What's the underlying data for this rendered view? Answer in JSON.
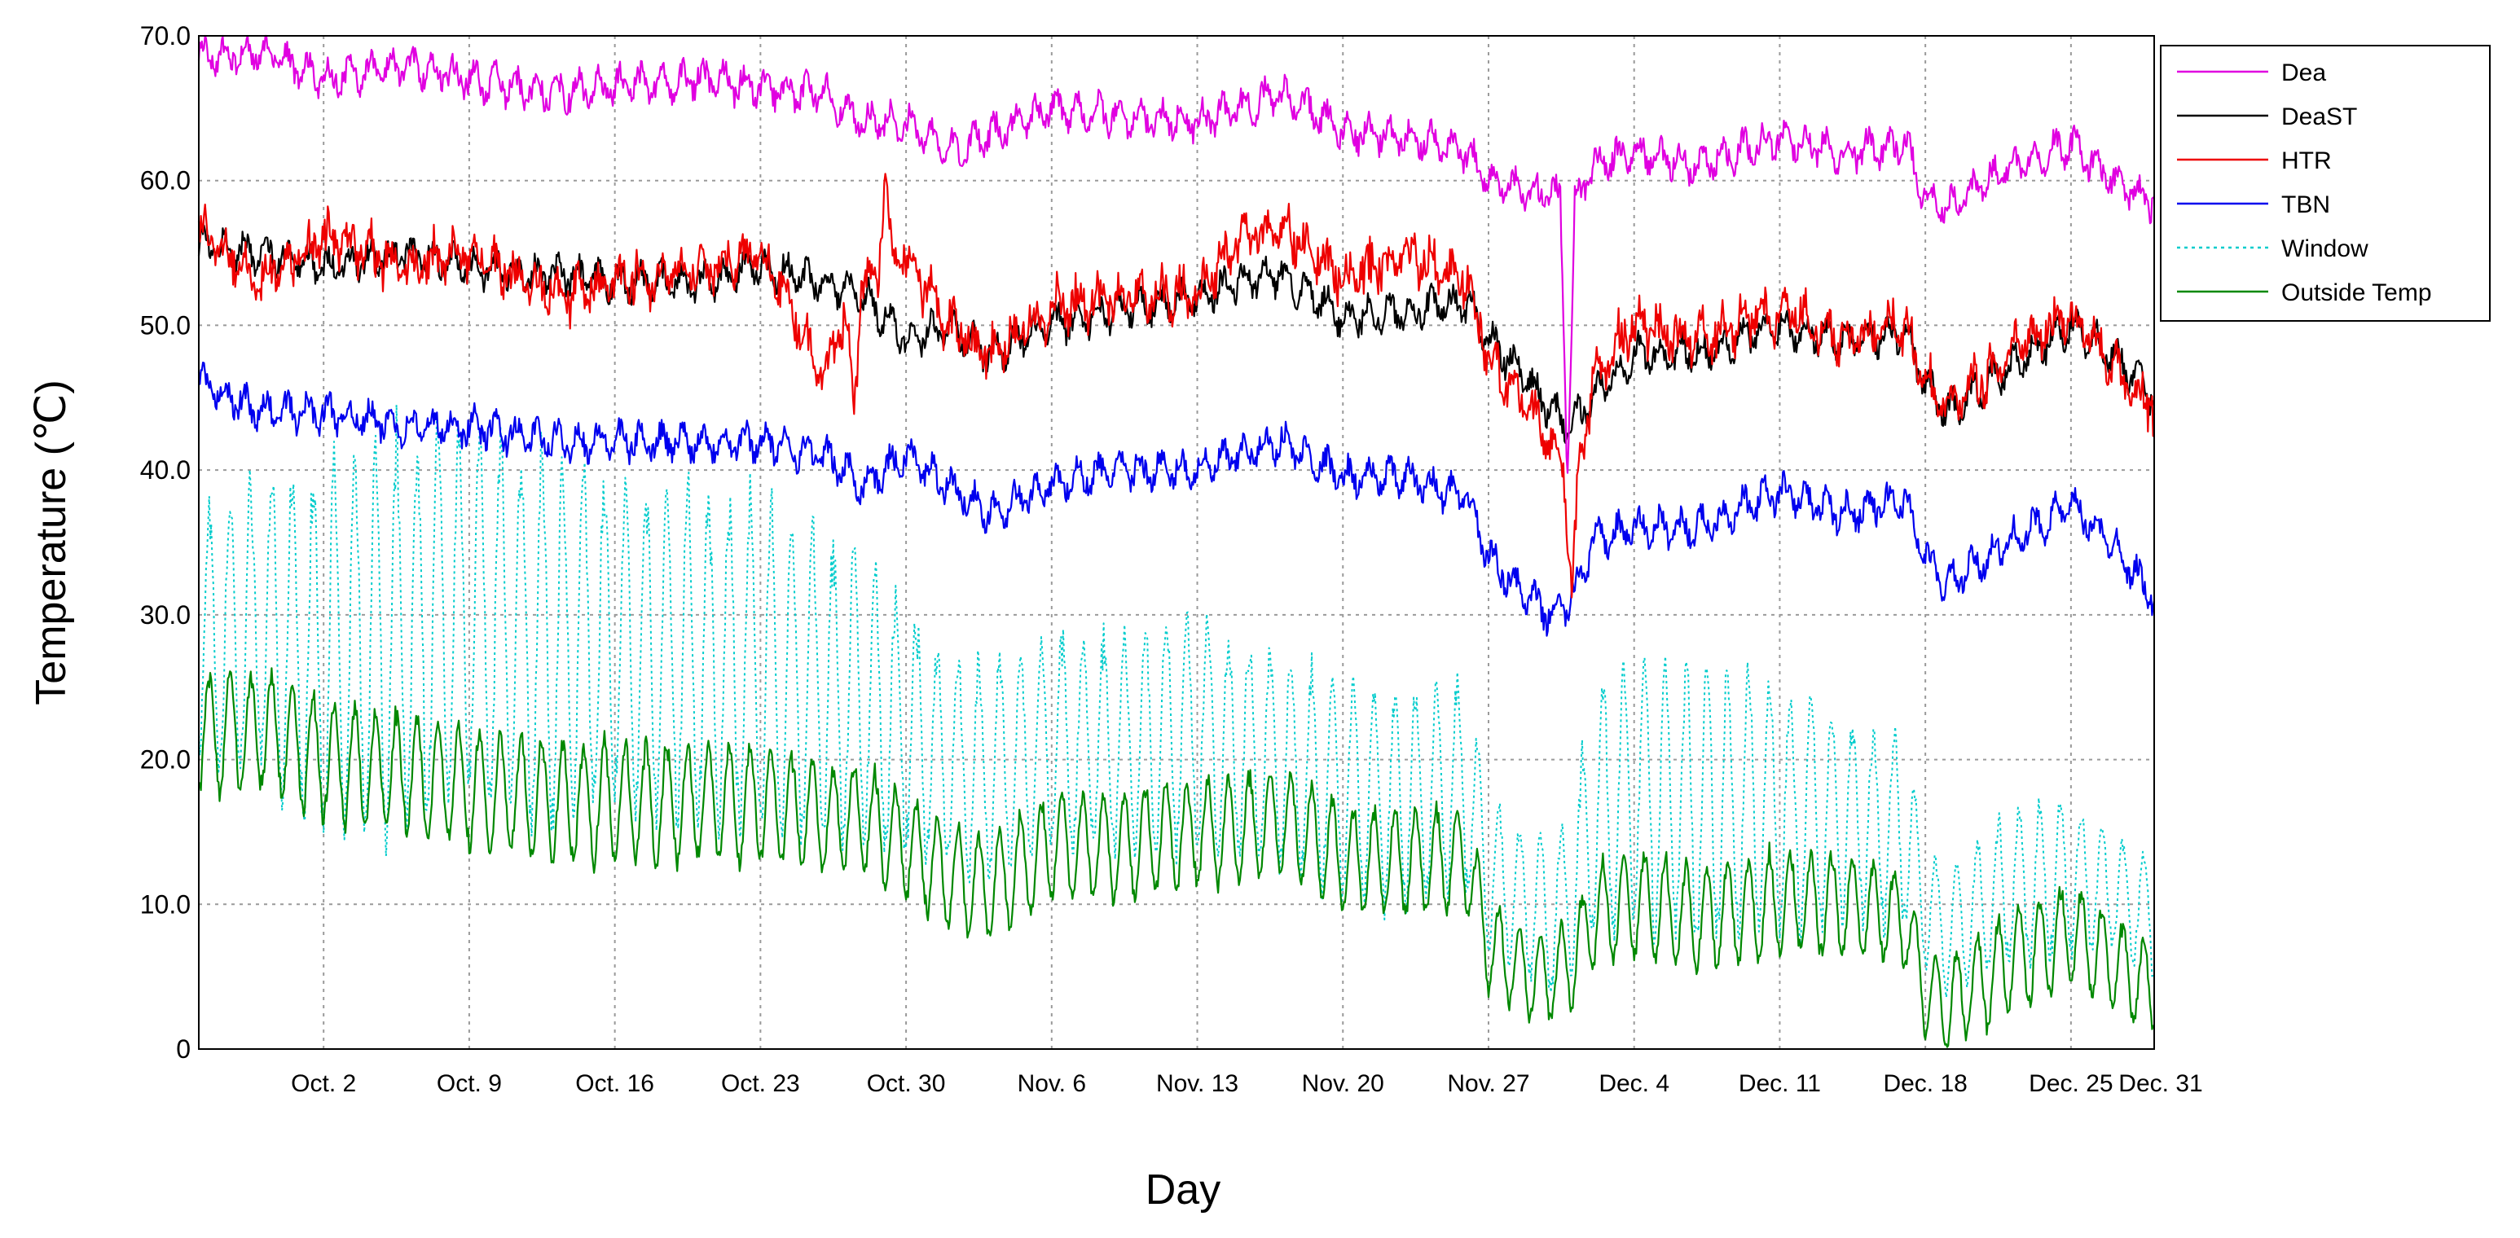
{
  "chart_data": {
    "type": "line",
    "title": "",
    "xlabel": "Day",
    "ylabel": "Temperature (℃)",
    "ylim": [
      0,
      70
    ],
    "xlim": [
      -3,
      91
    ],
    "grid": true,
    "legend_position": "top-right",
    "yticks": [
      {
        "value": 0,
        "label": "0"
      },
      {
        "value": 10,
        "label": "10.0"
      },
      {
        "value": 20,
        "label": "20.0"
      },
      {
        "value": 30,
        "label": "30.0"
      },
      {
        "value": 40,
        "label": "40.0"
      },
      {
        "value": 50,
        "label": "50.0"
      },
      {
        "value": 60,
        "label": "60.0"
      },
      {
        "value": 70,
        "label": "70.0"
      }
    ],
    "xticks": [
      {
        "value": 3,
        "label": "Oct. 2"
      },
      {
        "value": 10,
        "label": "Oct. 9"
      },
      {
        "value": 17,
        "label": "Oct. 16"
      },
      {
        "value": 24,
        "label": "Oct. 23"
      },
      {
        "value": 31,
        "label": "Oct. 30"
      },
      {
        "value": 38,
        "label": "Nov. 6"
      },
      {
        "value": 45,
        "label": "Nov. 13"
      },
      {
        "value": 52,
        "label": "Nov. 20"
      },
      {
        "value": 59,
        "label": "Nov. 27"
      },
      {
        "value": 66,
        "label": "Dec. 4"
      },
      {
        "value": 73,
        "label": "Dec. 11"
      },
      {
        "value": 80,
        "label": "Dec. 18"
      },
      {
        "value": 87,
        "label": "Dec. 25"
      },
      {
        "value": 93,
        "label": "Dec. 31"
      }
    ],
    "x": [
      -3,
      0,
      3,
      7,
      10,
      14,
      17,
      21,
      24,
      27,
      29,
      31,
      33,
      35,
      38,
      41,
      45,
      47,
      49,
      52,
      55,
      58,
      59,
      61,
      62,
      63,
      64,
      66,
      69,
      73,
      76,
      79,
      80,
      81,
      84,
      87,
      89,
      91
    ],
    "series": [
      {
        "name": "Dea",
        "color": "#e000e0",
        "dashed": false,
        "values": [
          68.5,
          69,
          67,
          68,
          67,
          66,
          66.5,
          67,
          66.5,
          66,
          64,
          64,
          62,
          63,
          65,
          64.5,
          64,
          65,
          66,
          63.5,
          63,
          62,
          60,
          59,
          59,
          58,
          61,
          62,
          61,
          63,
          62,
          62.5,
          59,
          58,
          61,
          62.5,
          60,
          58.5
        ],
        "spikes": [
          {
            "x": 62.8,
            "value": 40
          }
        ]
      },
      {
        "name": "DeaST",
        "color": "#000000",
        "dashed": false,
        "values": [
          55.5,
          55,
          54,
          55,
          54,
          53.5,
          53,
          53,
          54,
          53,
          52,
          49,
          50,
          48,
          50,
          51,
          52,
          53,
          53.5,
          50.5,
          51,
          51.5,
          49,
          46,
          44,
          43,
          45,
          48,
          48,
          50,
          49,
          49.5,
          46,
          44,
          47,
          50,
          48,
          45
        ]
      },
      {
        "name": "HTR",
        "color": "#ee0000",
        "dashed": false,
        "values": [
          57,
          53,
          56,
          54,
          55,
          52,
          53,
          54,
          55,
          47,
          53,
          55,
          50,
          48,
          51,
          52,
          52,
          56,
          57,
          53,
          55,
          53,
          48,
          44,
          42,
          38,
          46,
          50,
          49,
          51,
          49,
          50,
          46,
          44,
          48,
          51,
          47,
          44
        ],
        "spikes": [
          {
            "x": 30,
            "value": 60
          },
          {
            "x": 28.5,
            "value": 44
          },
          {
            "x": 63,
            "value": 32
          }
        ]
      },
      {
        "name": "TBN",
        "color": "#0000ee",
        "dashed": false,
        "values": [
          46,
          44,
          44,
          43,
          43,
          42,
          42,
          42,
          42,
          41,
          39,
          41,
          39,
          37,
          39,
          40,
          40,
          41,
          42,
          39.5,
          39.5,
          38,
          34,
          31,
          30,
          31,
          35,
          36,
          36,
          38.5,
          37,
          38,
          34,
          32,
          35,
          37.5,
          35,
          31
        ]
      },
      {
        "name": "Window",
        "color": "#00cccc",
        "dashed": true,
        "values": [
          28,
          29,
          27,
          29,
          30,
          28,
          28,
          27,
          26,
          25,
          24,
          22,
          20,
          19,
          21,
          21,
          22,
          21,
          20,
          18,
          17,
          18,
          12,
          10,
          9,
          11,
          16,
          18,
          17,
          17,
          16,
          15,
          10,
          8,
          11,
          12,
          11,
          9
        ],
        "amps": [
          8,
          10,
          12,
          13,
          12,
          12,
          11,
          11,
          11,
          10,
          10,
          8,
          7,
          7,
          7,
          7,
          8,
          7,
          7,
          7,
          7,
          7,
          5,
          5,
          5,
          5,
          8,
          9,
          9,
          8,
          7,
          6,
          4,
          4,
          5,
          5,
          4,
          4
        ]
      },
      {
        "name": "Outside Temp",
        "color": "#008800",
        "dashed": false,
        "values": [
          22,
          22,
          20,
          19,
          18,
          17,
          17,
          17,
          17,
          16,
          16,
          14,
          12,
          11,
          14,
          14,
          15,
          15,
          16,
          13,
          13,
          13,
          7,
          5,
          5,
          6,
          9,
          10,
          9,
          10,
          10,
          9,
          4,
          3,
          6,
          8,
          6,
          4
        ],
        "amps": [
          4,
          4,
          4,
          4,
          4,
          4,
          4,
          4,
          4,
          3.5,
          3.5,
          3.5,
          3.5,
          3.5,
          3.5,
          3.5,
          3.5,
          3.5,
          3.5,
          3.5,
          3.5,
          3.5,
          3,
          3,
          3,
          3,
          3.5,
          3.5,
          3.5,
          3.5,
          3.5,
          3,
          3,
          3,
          3.5,
          3.5,
          3,
          3
        ]
      }
    ]
  }
}
